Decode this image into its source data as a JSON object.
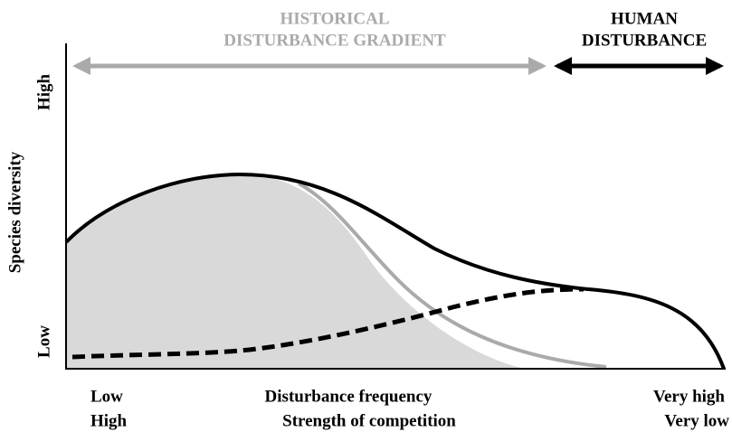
{
  "top": {
    "historical": [
      "HISTORICAL",
      "DISTURBANCE GRADIENT"
    ],
    "human": [
      "HUMAN",
      "DISTURBANCE"
    ]
  },
  "y_axis": {
    "label": "Species diversity",
    "high": "High",
    "low": "Low"
  },
  "x_axis": {
    "row1": {
      "left": "Low",
      "label": "Disturbance frequency",
      "right": "Very high"
    },
    "row2": {
      "left": "High",
      "label": "Strength of competition",
      "right": "Very low"
    }
  }
}
